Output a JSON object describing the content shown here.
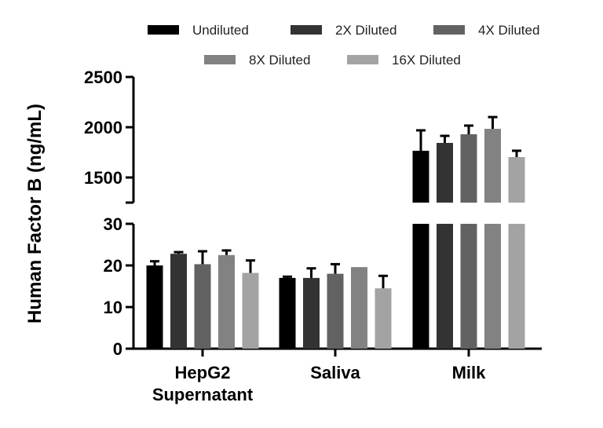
{
  "chart_data": {
    "type": "bar",
    "title": "",
    "xlabel": "",
    "ylabel": "Human Factor B (ng/mL)",
    "axis_break": true,
    "lower_ylim": [
      0,
      30
    ],
    "lower_ticks": [
      0,
      10,
      20,
      30
    ],
    "upper_ylim": [
      1250,
      2500
    ],
    "upper_ticks": [
      1500,
      2000,
      2500
    ],
    "grid": false,
    "legend_placement": "top",
    "categories": [
      [
        "HepG2",
        "Supernatant"
      ],
      [
        "Saliva"
      ],
      [
        "Milk"
      ]
    ],
    "series": [
      {
        "name": "Undiluted",
        "color": "#000000",
        "values": [
          20.0,
          17.0,
          1766
        ],
        "error": [
          1.0,
          0.3,
          203
        ]
      },
      {
        "name": "2X Diluted",
        "color": "#333333",
        "values": [
          22.8,
          17.0,
          1844
        ],
        "error": [
          0.4,
          2.3,
          70
        ]
      },
      {
        "name": "4X Diluted",
        "color": "#626262",
        "values": [
          20.3,
          18.0,
          1930
        ],
        "error": [
          3.1,
          2.3,
          86
        ]
      },
      {
        "name": "8X Diluted",
        "color": "#828282",
        "values": [
          22.5,
          19.6,
          1984
        ],
        "error": [
          1.1,
          0,
          117
        ]
      },
      {
        "name": "16X Diluted",
        "color": "#a3a3a3",
        "values": [
          18.2,
          14.5,
          1703
        ],
        "error": [
          3.0,
          3.0,
          63
        ]
      }
    ]
  }
}
